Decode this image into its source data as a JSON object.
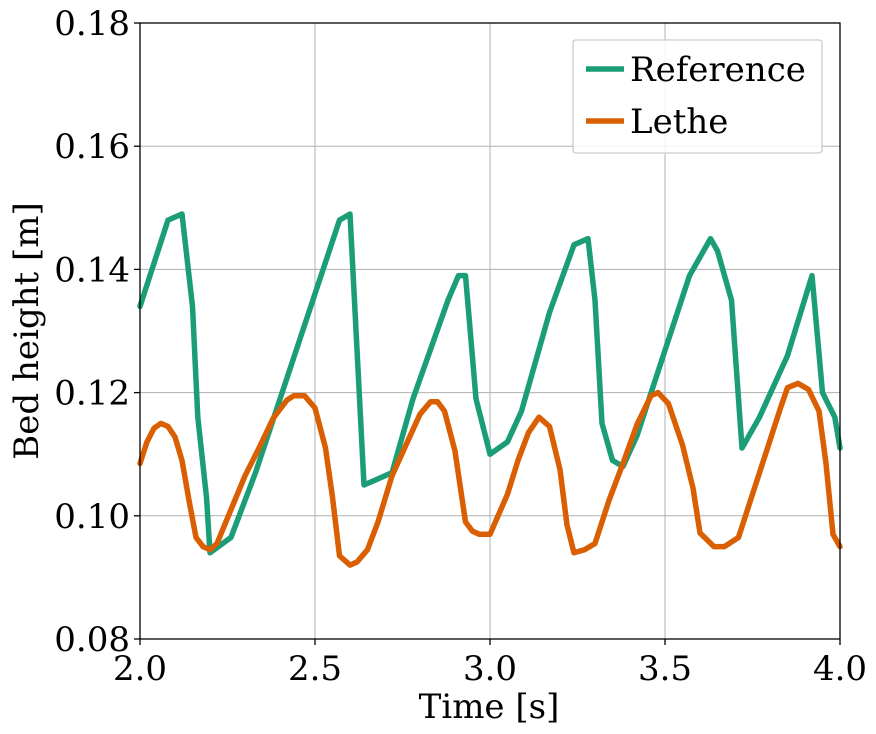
{
  "chart_data": {
    "type": "line",
    "xlabel": "Time [s]",
    "ylabel": "Bed height [m]",
    "xlim": [
      2.0,
      4.0
    ],
    "ylim": [
      0.08,
      0.18
    ],
    "xticks": [
      "2.0",
      "2.5",
      "3.0",
      "3.5",
      "4.0"
    ],
    "yticks": [
      "0.08",
      "0.10",
      "0.12",
      "0.14",
      "0.16",
      "0.18"
    ],
    "grid": true,
    "legend_position": "top-right",
    "series": [
      {
        "name": "Reference",
        "color": "#1b9e77",
        "x": [
          2.0,
          2.08,
          2.12,
          2.15,
          2.165,
          2.19,
          2.2,
          2.26,
          2.33,
          2.57,
          2.6,
          2.64,
          2.72,
          2.78,
          2.88,
          2.91,
          2.93,
          2.96,
          3.0,
          3.05,
          3.09,
          3.17,
          3.24,
          3.28,
          3.3,
          3.32,
          3.35,
          3.38,
          3.42,
          3.57,
          3.63,
          3.65,
          3.69,
          3.72,
          3.77,
          3.85,
          3.92,
          3.95,
          3.985,
          4.0
        ],
        "y": [
          0.134,
          0.148,
          0.149,
          0.134,
          0.116,
          0.103,
          0.094,
          0.0965,
          0.107,
          0.148,
          0.149,
          0.105,
          0.107,
          0.119,
          0.135,
          0.139,
          0.139,
          0.119,
          0.11,
          0.112,
          0.117,
          0.133,
          0.144,
          0.145,
          0.135,
          0.115,
          0.109,
          0.108,
          0.113,
          0.139,
          0.145,
          0.143,
          0.135,
          0.111,
          0.116,
          0.126,
          0.139,
          0.12,
          0.116,
          0.111
        ]
      },
      {
        "name": "Lethe",
        "color": "#d95f02",
        "x": [
          2.0,
          2.02,
          2.04,
          2.06,
          2.08,
          2.1,
          2.12,
          2.14,
          2.16,
          2.18,
          2.2,
          2.22,
          2.26,
          2.3,
          2.34,
          2.38,
          2.42,
          2.44,
          2.47,
          2.5,
          2.53,
          2.55,
          2.57,
          2.6,
          2.62,
          2.65,
          2.68,
          2.72,
          2.76,
          2.8,
          2.83,
          2.85,
          2.87,
          2.9,
          2.93,
          2.95,
          2.97,
          3.0,
          3.05,
          3.08,
          3.11,
          3.14,
          3.17,
          3.2,
          3.22,
          3.24,
          3.27,
          3.3,
          3.34,
          3.38,
          3.42,
          3.46,
          3.48,
          3.51,
          3.55,
          3.58,
          3.6,
          3.64,
          3.67,
          3.71,
          3.75,
          3.79,
          3.83,
          3.85,
          3.88,
          3.91,
          3.94,
          3.96,
          3.98,
          4.0
        ],
        "y": [
          0.1085,
          0.112,
          0.1142,
          0.115,
          0.1145,
          0.1128,
          0.109,
          0.1025,
          0.0965,
          0.095,
          0.0945,
          0.0955,
          0.101,
          0.1065,
          0.111,
          0.1158,
          0.1188,
          0.1195,
          0.1195,
          0.1175,
          0.111,
          0.103,
          0.0935,
          0.092,
          0.0925,
          0.0945,
          0.099,
          0.1065,
          0.1115,
          0.1165,
          0.1185,
          0.1185,
          0.117,
          0.1105,
          0.099,
          0.0975,
          0.097,
          0.097,
          0.1035,
          0.109,
          0.1135,
          0.116,
          0.1145,
          0.1075,
          0.0985,
          0.094,
          0.0945,
          0.0955,
          0.1025,
          0.1085,
          0.1148,
          0.1195,
          0.12,
          0.1182,
          0.1115,
          0.1045,
          0.0972,
          0.095,
          0.095,
          0.0965,
          0.1035,
          0.1105,
          0.1175,
          0.1208,
          0.1215,
          0.1205,
          0.117,
          0.1085,
          0.097,
          0.095
        ]
      }
    ]
  }
}
